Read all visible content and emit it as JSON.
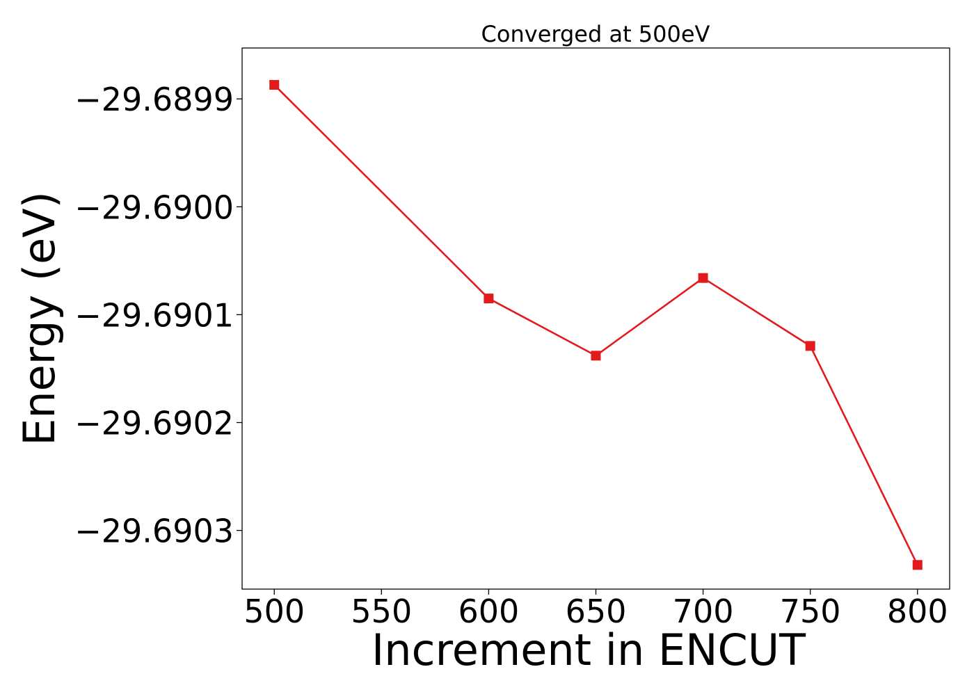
{
  "chart_data": {
    "type": "line",
    "title": "Converged at 500eV",
    "xlabel": "Increment in ENCUT",
    "ylabel": "Energy (eV)",
    "x": [
      500,
      600,
      650,
      700,
      750,
      800
    ],
    "series": [
      {
        "values": [
          -29.689887,
          -29.690085,
          -29.690138,
          -29.690066,
          -29.690129,
          -29.690332
        ],
        "color": "#e31a1c",
        "marker": "square"
      }
    ],
    "xlim": [
      485,
      815
    ],
    "ylim": [
      -29.6903544,
      -29.6898528
    ],
    "xticks": [
      500,
      550,
      600,
      650,
      700,
      750,
      800
    ],
    "xtick_labels": [
      "500",
      "550",
      "600",
      "650",
      "700",
      "750",
      "800"
    ],
    "yticks": [
      -29.6899,
      -29.69,
      -29.6901,
      -29.6902,
      -29.6903
    ],
    "ytick_labels": [
      "−29.6899",
      "−29.6900",
      "−29.6901",
      "−29.6902",
      "−29.6903"
    ],
    "grid": false,
    "legend": "none"
  }
}
